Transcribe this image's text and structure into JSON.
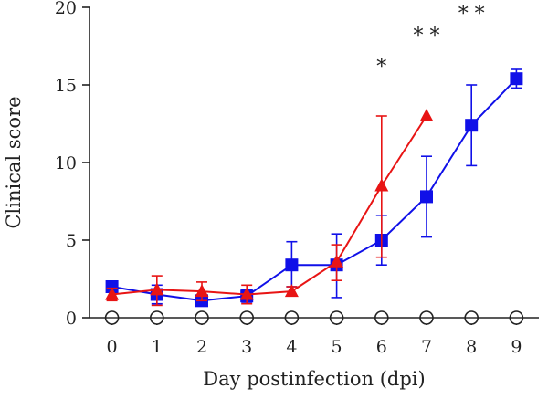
{
  "chart_data": {
    "type": "line",
    "title": "",
    "xlabel": "Day postinfection (dpi)",
    "ylabel": "Clinical score",
    "x": [
      0,
      1,
      2,
      3,
      4,
      5,
      6,
      7,
      8,
      9
    ],
    "xlim": [
      -0.5,
      9.5
    ],
    "ylim": [
      0,
      20
    ],
    "yticks": [
      0,
      5,
      10,
      15,
      20
    ],
    "xticks": [
      0,
      1,
      2,
      3,
      4,
      5,
      6,
      7,
      8,
      9
    ],
    "grid": false,
    "legend": "none",
    "series": [
      {
        "color": "#1010e8",
        "marker": "square",
        "x": [
          0,
          1,
          2,
          3,
          4,
          5,
          6,
          7,
          8,
          9
        ],
        "values": [
          2.0,
          1.5,
          1.1,
          1.4,
          3.4,
          3.4,
          5.0,
          7.8,
          12.4,
          15.4
        ],
        "err_low": [
          0.3,
          0.6,
          0.2,
          0.4,
          1.4,
          2.1,
          1.6,
          2.6,
          2.6,
          0.6
        ],
        "err_high": [
          0.3,
          0.6,
          0.2,
          0.4,
          1.5,
          2.0,
          1.6,
          2.6,
          2.6,
          0.6
        ]
      },
      {
        "color": "#e81414",
        "marker": "triangle",
        "x": [
          0,
          1,
          2,
          3,
          4,
          5,
          6,
          7
        ],
        "values": [
          1.5,
          1.8,
          1.7,
          1.5,
          1.7,
          3.6,
          8.5,
          13.0
        ],
        "err_low": [
          0.4,
          1.0,
          0.6,
          0.6,
          0.3,
          1.2,
          4.6,
          0
        ],
        "err_high": [
          0.4,
          0.9,
          0.6,
          0.6,
          0.3,
          1.1,
          4.5,
          0
        ]
      },
      {
        "color": "#222222",
        "marker": "open-circle",
        "x": [
          0,
          1,
          2,
          3,
          4,
          5,
          6,
          7,
          8,
          9
        ],
        "values": [
          0,
          0,
          0,
          0,
          0,
          0,
          0,
          0,
          0,
          0
        ]
      }
    ],
    "annotations": [
      {
        "x": 6,
        "text": "*"
      },
      {
        "x": 7,
        "text": "* *"
      },
      {
        "x": 8,
        "text": "* *"
      }
    ]
  }
}
